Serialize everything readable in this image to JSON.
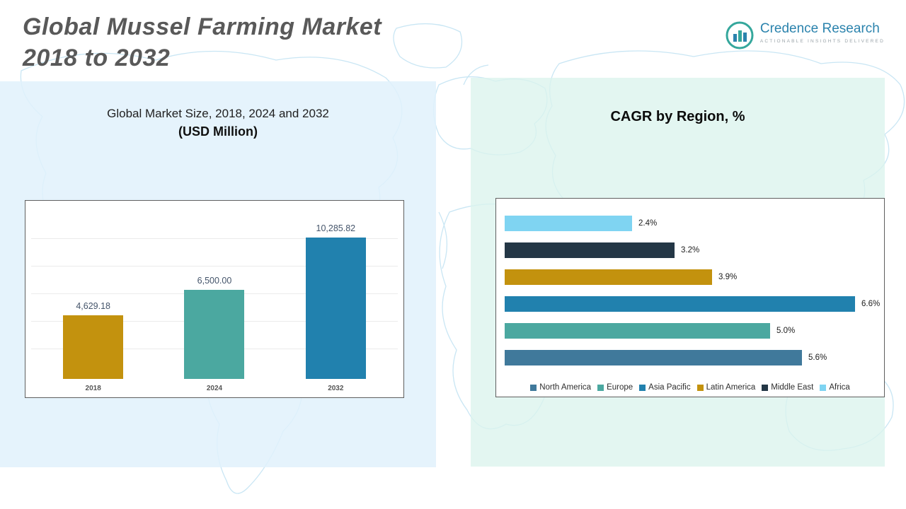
{
  "header": {
    "title_line1": "Global Mussel Farming Market",
    "title_line2": "2018 to 2032",
    "logo": {
      "name": "Credence Research",
      "tagline": "Actionable Insights Delivered"
    }
  },
  "left_chart": {
    "title": "Global Market Size, 2018, 2024 and 2032",
    "subtitle": "(USD Million)"
  },
  "right_chart": {
    "title": "CAGR by Region, %"
  },
  "colors": {
    "gold": "#c3920e",
    "teal": "#4ba8a0",
    "blue": "#2181ae",
    "light_blue": "#7fd4f2",
    "dark_navy": "#243746",
    "steel_blue": "#40799b",
    "panel_left_bg": "#e0f1fb",
    "panel_right_bg": "#dbf3ed",
    "map_line": "#c9e6f4"
  },
  "chart_data": [
    {
      "type": "bar",
      "orientation": "vertical",
      "title": "Global Market Size, 2018, 2024 and 2032 (USD Million)",
      "categories": [
        "2018",
        "2024",
        "2032"
      ],
      "values": [
        4629.18,
        6500.0,
        10285.82
      ],
      "value_labels": [
        "4,629.18",
        "6,500.00",
        "10,285.82"
      ],
      "colors": [
        "#c3920e",
        "#4ba8a0",
        "#2181ae"
      ],
      "xlabel": "",
      "ylabel": "USD Million",
      "ylim": [
        0,
        11000
      ],
      "grid": true,
      "legend_position": "none"
    },
    {
      "type": "bar",
      "orientation": "horizontal",
      "title": "CAGR by Region, %",
      "categories": [
        "Africa",
        "Middle East",
        "Latin America",
        "Asia Pacific",
        "Europe",
        "North America"
      ],
      "values": [
        2.4,
        3.2,
        3.9,
        6.6,
        5.0,
        5.6
      ],
      "value_labels": [
        "2.4%",
        "3.2%",
        "3.9%",
        "6.6%",
        "5.0%",
        "5.6%"
      ],
      "colors": [
        "#7fd4f2",
        "#243746",
        "#c3920e",
        "#2181ae",
        "#4ba8a0",
        "#40799b"
      ],
      "xlim": [
        0,
        7
      ],
      "grid": false,
      "legend": [
        "North America",
        "Europe",
        "Asia Pacific",
        "Latin America",
        "Middle East",
        "Africa"
      ],
      "legend_colors": [
        "#40799b",
        "#4ba8a0",
        "#2181ae",
        "#c3920e",
        "#243746",
        "#7fd4f2"
      ],
      "legend_position": "bottom"
    }
  ]
}
